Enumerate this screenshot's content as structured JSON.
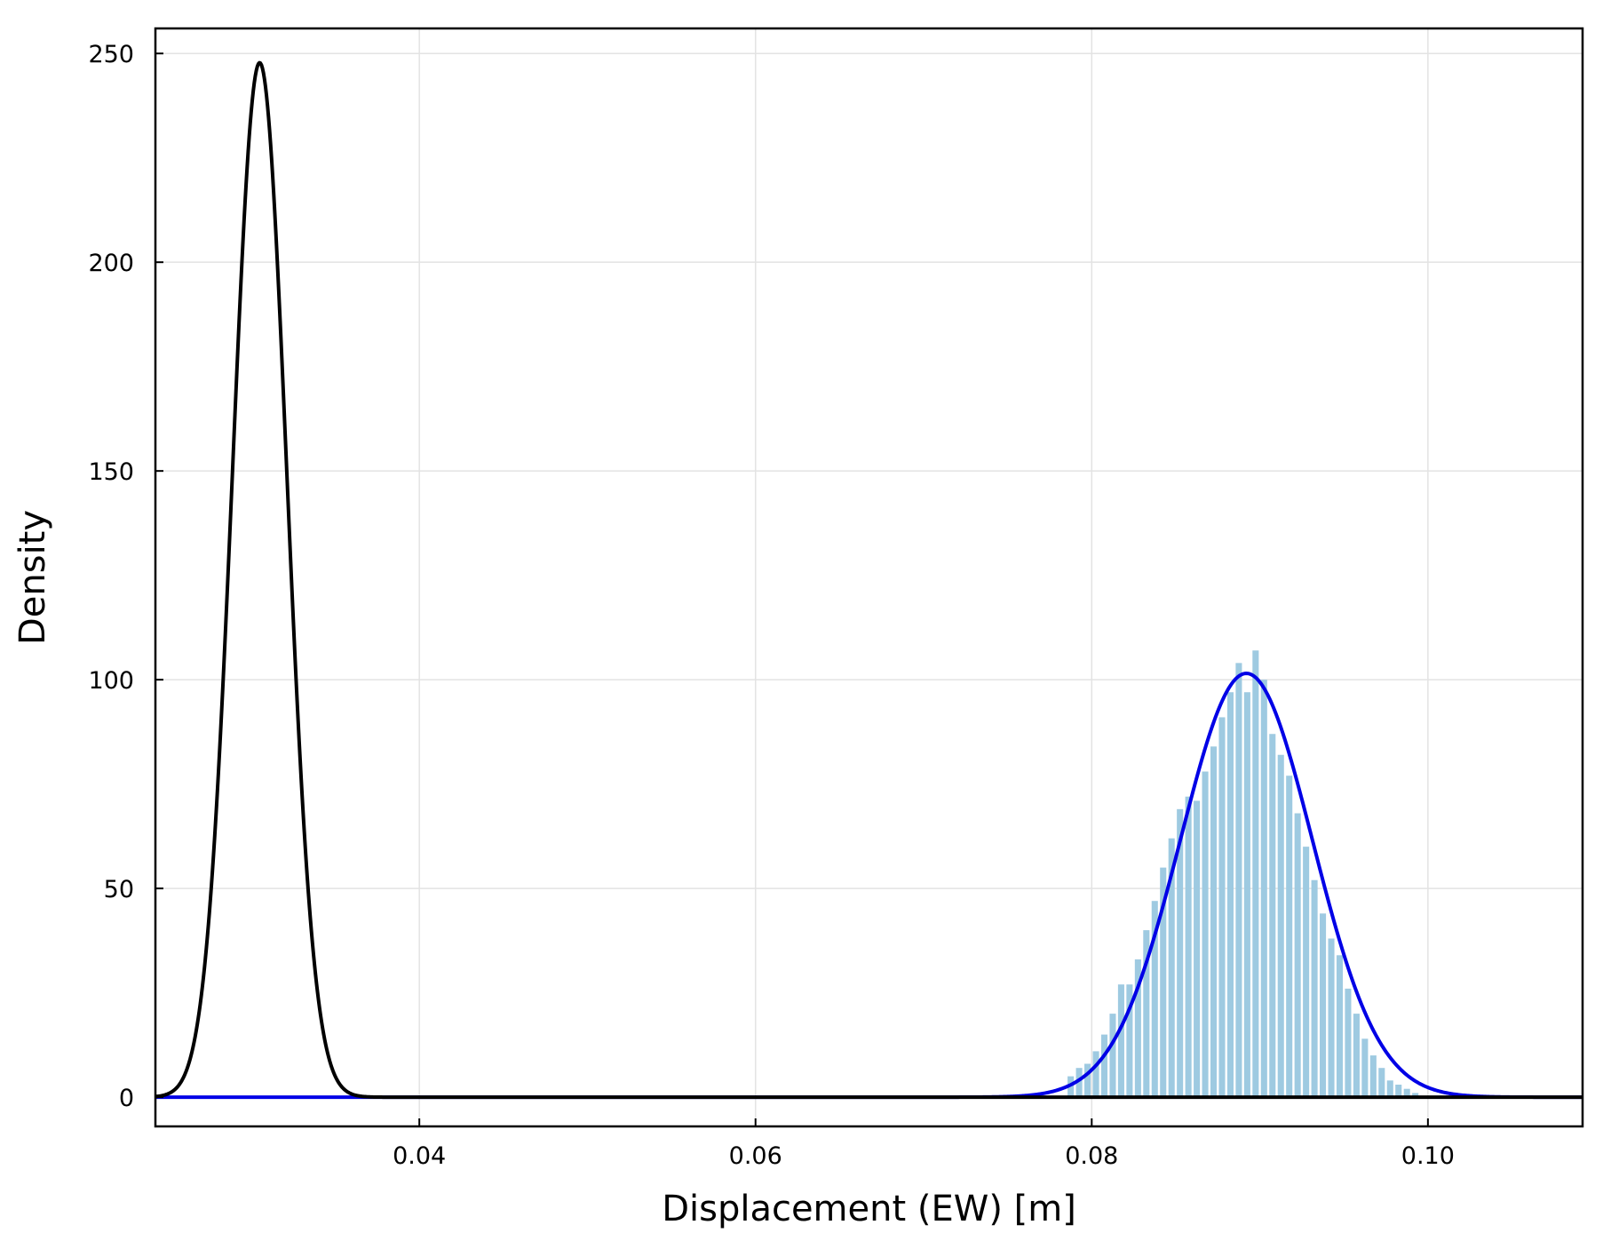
{
  "chart_data": {
    "type": "histogram",
    "title": "",
    "xlabel": "Displacement (EW) [m]",
    "ylabel": "Density",
    "xlim": [
      0.0243,
      0.1092
    ],
    "ylim": [
      -7,
      256
    ],
    "xticks": [
      0.04,
      0.06,
      0.08,
      0.1
    ],
    "xtick_labels": [
      "0.04",
      "0.06",
      "0.08",
      "0.10"
    ],
    "yticks": [
      0,
      50,
      100,
      150,
      200,
      250
    ],
    "ytick_labels": [
      "0",
      "50",
      "100",
      "150",
      "200",
      "250"
    ],
    "grid": true,
    "legend": "none",
    "colors": {
      "histogram": "#9ecae1",
      "posterior_curve": "#0000e6",
      "prior_curve": "#000000"
    },
    "histogram": {
      "bin_width": 0.0005,
      "bin_starts": [
        0.0785,
        0.079,
        0.0795,
        0.08,
        0.0805,
        0.081,
        0.0815,
        0.082,
        0.0825,
        0.083,
        0.0835,
        0.084,
        0.0845,
        0.085,
        0.0855,
        0.086,
        0.0865,
        0.087,
        0.0875,
        0.088,
        0.0885,
        0.089,
        0.0895,
        0.09,
        0.0905,
        0.091,
        0.0915,
        0.092,
        0.0925,
        0.093,
        0.0935,
        0.094,
        0.0945,
        0.095,
        0.0955,
        0.096,
        0.0965,
        0.097,
        0.0975,
        0.098,
        0.0985,
        0.099
      ],
      "values": [
        5,
        7,
        8,
        11,
        15,
        20,
        27,
        27,
        33,
        40,
        47,
        55,
        62,
        69,
        72,
        71,
        78,
        84,
        91,
        97,
        104,
        97,
        107,
        100,
        87,
        82,
        77,
        68,
        60,
        52,
        44,
        38,
        34,
        26,
        20,
        14,
        10,
        7,
        4,
        3,
        2,
        1
      ]
    },
    "curves": [
      {
        "distribution": "normal",
        "mean": 0.0892,
        "sd": 0.00393,
        "color": "#0000e6"
      },
      {
        "distribution": "normal",
        "mean": 0.0305,
        "sd": 0.00161,
        "color": "#000000"
      }
    ]
  }
}
